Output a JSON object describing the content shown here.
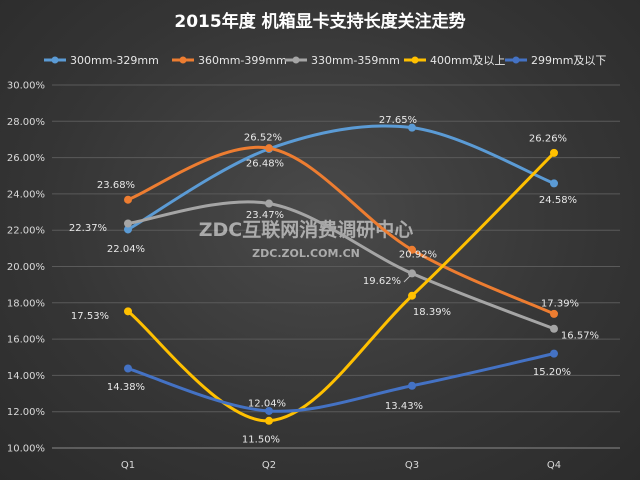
{
  "chart_data": {
    "type": "line",
    "title": "2015年度 机箱显卡支持长度关注走势",
    "categories": [
      "Q1",
      "Q2",
      "Q3",
      "Q4"
    ],
    "ylim": [
      10,
      30
    ],
    "yticks": [
      "10.00%",
      "12.00%",
      "14.00%",
      "16.00%",
      "18.00%",
      "20.00%",
      "22.00%",
      "24.00%",
      "26.00%",
      "28.00%",
      "30.00%"
    ],
    "grid": true,
    "legend_position": "top",
    "series": [
      {
        "name": "300mm-329mm",
        "color": "#5b9bd5",
        "values": [
          22.04,
          26.48,
          27.65,
          24.58
        ],
        "labels": [
          "22.04%",
          "26.48%",
          "27.65%",
          "24.58%"
        ]
      },
      {
        "name": "360mm-399mm",
        "color": "#ed7d31",
        "values": [
          23.68,
          26.52,
          20.92,
          17.39
        ],
        "labels": [
          "23.68%",
          "26.52%",
          "20.92%",
          "17.39%"
        ]
      },
      {
        "name": "330mm-359mm",
        "color": "#a5a5a5",
        "values": [
          22.37,
          23.47,
          19.62,
          16.57
        ],
        "labels": [
          "22.37%",
          "23.47%",
          "19.62%",
          "16.57%"
        ]
      },
      {
        "name": "400mm及以上",
        "color": "#ffc000",
        "values": [
          17.53,
          11.5,
          18.39,
          26.26
        ],
        "labels": [
          "17.53%",
          "11.50%",
          "18.39%",
          "26.26%"
        ]
      },
      {
        "name": "299mm及以下",
        "color": "#4472c4",
        "values": [
          14.38,
          12.04,
          13.43,
          15.2
        ],
        "labels": [
          "14.38%",
          "12.04%",
          "13.43%",
          "15.20%"
        ]
      }
    ]
  },
  "watermark": {
    "main": "ZDC互联网消费调研中心",
    "sub": "ZDC.ZOL.COM.CN"
  }
}
